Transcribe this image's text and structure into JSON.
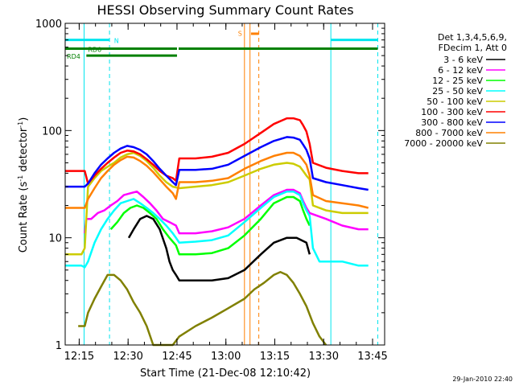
{
  "chart_data": {
    "type": "line",
    "title": "HESSI Observing Summary Count Rates",
    "xlabel": "Start Time (21-Dec-08 12:10:42)",
    "ylabel_main": "Count Rate (s",
    "ylabel_sup1": "-1",
    "ylabel_mid": " detector",
    "ylabel_sup2": "-1",
    "ylabel_end": ")",
    "ylim": [
      1,
      1000
    ],
    "yscale": "log",
    "y_ticks": [
      {
        "v": 1,
        "label": "1"
      },
      {
        "v": 10,
        "label": "10"
      },
      {
        "v": 100,
        "label": "100"
      },
      {
        "v": 1000,
        "label": "1000"
      }
    ],
    "x_ticks": [
      {
        "v": 4.3,
        "label": "12:15"
      },
      {
        "v": 19.3,
        "label": "12:30"
      },
      {
        "v": 34.3,
        "label": "12:45"
      },
      {
        "v": 49.3,
        "label": "13:00"
      },
      {
        "v": 64.3,
        "label": "13:15"
      },
      {
        "v": 79.3,
        "label": "13:30"
      },
      {
        "v": 94.3,
        "label": "13:45"
      }
    ],
    "xlim": [
      0,
      98
    ],
    "timestamp": "29-Jan-2010 22:40",
    "legend": {
      "placement": "right",
      "header1": "Det 1,3,4,5,6,9,",
      "header2": "FDecim 1, Att 0"
    },
    "series": [
      {
        "name": "3 - 6 keV",
        "color": "#000000",
        "points": [
          [
            19.5,
            10
          ],
          [
            21,
            12
          ],
          [
            23,
            15
          ],
          [
            25,
            16
          ],
          [
            27,
            15
          ],
          [
            29,
            12
          ],
          [
            31,
            8
          ],
          [
            32,
            6
          ],
          [
            33,
            5
          ],
          [
            34,
            4.5
          ],
          [
            35,
            4
          ],
          [
            40,
            4
          ],
          [
            45,
            4
          ],
          [
            50,
            4.2
          ],
          [
            55,
            5
          ],
          [
            60,
            7
          ],
          [
            64,
            9
          ],
          [
            68,
            10
          ],
          [
            71,
            10
          ],
          [
            74,
            9
          ],
          [
            75,
            7
          ]
        ]
      },
      {
        "name": "6 - 12 keV",
        "color": "#ff00ff",
        "points": [
          [
            6,
            11
          ],
          [
            6.5,
            15
          ],
          [
            8,
            15
          ],
          [
            10,
            17
          ],
          [
            12,
            18
          ],
          [
            14,
            20
          ],
          [
            16,
            22
          ],
          [
            18,
            25
          ],
          [
            20,
            26
          ],
          [
            22,
            27
          ],
          [
            24,
            24
          ],
          [
            26,
            21
          ],
          [
            28,
            18
          ],
          [
            30,
            15
          ],
          [
            32,
            14
          ],
          [
            34,
            13
          ],
          [
            35,
            11
          ],
          [
            40,
            11
          ],
          [
            45,
            11.5
          ],
          [
            50,
            12.5
          ],
          [
            55,
            15
          ],
          [
            60,
            20
          ],
          [
            64,
            25
          ],
          [
            68,
            28
          ],
          [
            70,
            28
          ],
          [
            72,
            26
          ],
          [
            73,
            22
          ],
          [
            74,
            19
          ],
          [
            75,
            17
          ],
          [
            80,
            15
          ],
          [
            85,
            13
          ],
          [
            90,
            12
          ],
          [
            93,
            12
          ]
        ]
      },
      {
        "name": "12 - 25 keV",
        "color": "#00ff00",
        "points": [
          [
            14,
            12
          ],
          [
            16,
            14
          ],
          [
            18,
            17
          ],
          [
            20,
            19
          ],
          [
            22,
            20
          ],
          [
            24,
            19
          ],
          [
            26,
            17
          ],
          [
            28,
            15
          ],
          [
            30,
            12
          ],
          [
            32,
            10
          ],
          [
            34,
            8.5
          ],
          [
            35,
            7
          ],
          [
            40,
            7
          ],
          [
            45,
            7.2
          ],
          [
            50,
            8
          ],
          [
            55,
            10.5
          ],
          [
            60,
            15
          ],
          [
            64,
            21
          ],
          [
            68,
            24
          ],
          [
            70,
            24
          ],
          [
            72,
            22
          ],
          [
            73,
            18
          ],
          [
            74,
            15
          ],
          [
            75,
            13
          ]
        ]
      },
      {
        "name": "25 - 50 keV",
        "color": "#00ffff",
        "points": [
          [
            0,
            5.5
          ],
          [
            5,
            5.5
          ],
          [
            6,
            5.3
          ],
          [
            7,
            6
          ],
          [
            9,
            9
          ],
          [
            11,
            12
          ],
          [
            13,
            15
          ],
          [
            15,
            18
          ],
          [
            17,
            21
          ],
          [
            19,
            22
          ],
          [
            21,
            23
          ],
          [
            23,
            21
          ],
          [
            25,
            19
          ],
          [
            27,
            17
          ],
          [
            29,
            15
          ],
          [
            31,
            13
          ],
          [
            33,
            11
          ],
          [
            34,
            10
          ],
          [
            35,
            9
          ],
          [
            40,
            9.2
          ],
          [
            45,
            9.5
          ],
          [
            50,
            10.5
          ],
          [
            55,
            14
          ],
          [
            60,
            19
          ],
          [
            64,
            24
          ],
          [
            68,
            27
          ],
          [
            70,
            27
          ],
          [
            72,
            25
          ],
          [
            73,
            21
          ],
          [
            74,
            18
          ],
          [
            75,
            16
          ],
          [
            76,
            8
          ],
          [
            78,
            6
          ],
          [
            80,
            6
          ],
          [
            85,
            6
          ],
          [
            90,
            5.5
          ],
          [
            93,
            5.5
          ]
        ]
      },
      {
        "name": "50 - 100 keV",
        "color": "#cccc00",
        "points": [
          [
            0,
            7
          ],
          [
            5,
            7
          ],
          [
            6,
            8
          ],
          [
            7,
            30
          ],
          [
            9,
            36
          ],
          [
            11,
            42
          ],
          [
            13,
            46
          ],
          [
            15,
            50
          ],
          [
            17,
            56
          ],
          [
            19,
            60
          ],
          [
            21,
            62
          ],
          [
            23,
            58
          ],
          [
            25,
            52
          ],
          [
            27,
            45
          ],
          [
            29,
            38
          ],
          [
            31,
            33
          ],
          [
            33,
            30
          ],
          [
            35,
            29
          ],
          [
            40,
            30
          ],
          [
            45,
            31
          ],
          [
            50,
            33
          ],
          [
            55,
            38
          ],
          [
            60,
            44
          ],
          [
            64,
            48
          ],
          [
            68,
            50
          ],
          [
            70,
            49
          ],
          [
            72,
            46
          ],
          [
            73,
            42
          ],
          [
            74,
            38
          ],
          [
            75,
            35
          ],
          [
            76,
            20
          ],
          [
            80,
            18
          ],
          [
            85,
            17
          ],
          [
            90,
            17
          ],
          [
            93,
            17
          ]
        ]
      },
      {
        "name": "100 - 300 keV",
        "color": "#ff0000",
        "points": [
          [
            0,
            42
          ],
          [
            6,
            42
          ],
          [
            7,
            32
          ],
          [
            9,
            38
          ],
          [
            11,
            44
          ],
          [
            13,
            50
          ],
          [
            15,
            56
          ],
          [
            17,
            62
          ],
          [
            19,
            65
          ],
          [
            21,
            64
          ],
          [
            23,
            60
          ],
          [
            25,
            54
          ],
          [
            27,
            48
          ],
          [
            29,
            42
          ],
          [
            31,
            38
          ],
          [
            33,
            36
          ],
          [
            34,
            34
          ],
          [
            35,
            55
          ],
          [
            40,
            55
          ],
          [
            45,
            57
          ],
          [
            50,
            62
          ],
          [
            55,
            75
          ],
          [
            60,
            95
          ],
          [
            64,
            115
          ],
          [
            68,
            130
          ],
          [
            70,
            130
          ],
          [
            72,
            125
          ],
          [
            73,
            112
          ],
          [
            74,
            98
          ],
          [
            75,
            75
          ],
          [
            76,
            50
          ],
          [
            80,
            45
          ],
          [
            85,
            42
          ],
          [
            90,
            40
          ],
          [
            93,
            40
          ]
        ]
      },
      {
        "name": "300 - 800 keV",
        "color": "#0000ff",
        "points": [
          [
            0,
            30
          ],
          [
            6,
            30
          ],
          [
            7,
            32
          ],
          [
            9,
            40
          ],
          [
            11,
            48
          ],
          [
            13,
            55
          ],
          [
            15,
            62
          ],
          [
            17,
            68
          ],
          [
            19,
            72
          ],
          [
            21,
            70
          ],
          [
            23,
            66
          ],
          [
            25,
            60
          ],
          [
            27,
            52
          ],
          [
            29,
            44
          ],
          [
            31,
            38
          ],
          [
            33,
            33
          ],
          [
            34,
            31
          ],
          [
            35,
            43
          ],
          [
            40,
            43
          ],
          [
            45,
            44
          ],
          [
            50,
            48
          ],
          [
            55,
            58
          ],
          [
            60,
            70
          ],
          [
            64,
            80
          ],
          [
            68,
            87
          ],
          [
            70,
            86
          ],
          [
            72,
            82
          ],
          [
            73,
            74
          ],
          [
            74,
            66
          ],
          [
            75,
            55
          ],
          [
            76,
            36
          ],
          [
            80,
            33
          ],
          [
            85,
            31
          ],
          [
            90,
            29
          ],
          [
            93,
            28
          ]
        ]
      },
      {
        "name": "800 - 7000 keV",
        "color": "#ff8000",
        "points": [
          [
            0,
            19
          ],
          [
            6,
            19
          ],
          [
            7,
            23
          ],
          [
            9,
            29
          ],
          [
            11,
            36
          ],
          [
            13,
            42
          ],
          [
            15,
            48
          ],
          [
            17,
            53
          ],
          [
            19,
            57
          ],
          [
            21,
            56
          ],
          [
            23,
            52
          ],
          [
            25,
            47
          ],
          [
            27,
            41
          ],
          [
            29,
            35
          ],
          [
            31,
            30
          ],
          [
            33,
            26
          ],
          [
            34,
            23
          ],
          [
            35,
            33
          ],
          [
            40,
            33
          ],
          [
            45,
            34
          ],
          [
            50,
            36
          ],
          [
            55,
            44
          ],
          [
            60,
            52
          ],
          [
            64,
            58
          ],
          [
            68,
            62
          ],
          [
            70,
            62
          ],
          [
            72,
            58
          ],
          [
            73,
            53
          ],
          [
            74,
            48
          ],
          [
            75,
            38
          ],
          [
            76,
            25
          ],
          [
            80,
            22
          ],
          [
            85,
            21
          ],
          [
            90,
            20
          ],
          [
            93,
            19
          ]
        ]
      },
      {
        "name": "7000 - 20000 keV",
        "color": "#808000",
        "points": [
          [
            4,
            1.5
          ],
          [
            6,
            1.5
          ],
          [
            7,
            2
          ],
          [
            9,
            2.7
          ],
          [
            11,
            3.5
          ],
          [
            13,
            4.5
          ],
          [
            15,
            4.5
          ],
          [
            17,
            4
          ],
          [
            19,
            3.3
          ],
          [
            21,
            2.5
          ],
          [
            23,
            2
          ],
          [
            25,
            1.5
          ],
          [
            27,
            1
          ],
          [
            33,
            1
          ],
          [
            35,
            1.2
          ],
          [
            40,
            1.5
          ],
          [
            45,
            1.8
          ],
          [
            50,
            2.2
          ],
          [
            55,
            2.7
          ],
          [
            58,
            3.3
          ],
          [
            61,
            3.8
          ],
          [
            64,
            4.5
          ],
          [
            66,
            4.8
          ],
          [
            68,
            4.5
          ],
          [
            70,
            3.8
          ],
          [
            72,
            3
          ],
          [
            74,
            2.3
          ],
          [
            76,
            1.6
          ],
          [
            78,
            1.2
          ],
          [
            80,
            1
          ]
        ]
      }
    ],
    "vlines": [
      {
        "x": 5.8,
        "color": "#00e5ee",
        "style": "solid"
      },
      {
        "x": 13.6,
        "color": "#00e5ee",
        "style": "dash"
      },
      {
        "x": 81.5,
        "color": "#00e5ee",
        "style": "solid"
      },
      {
        "x": 95.9,
        "color": "#00e5ee",
        "style": "dash"
      },
      {
        "x": 55.0,
        "color": "#ff8000",
        "style": "solid"
      },
      {
        "x": 56.7,
        "color": "#ff8000",
        "style": "solid"
      },
      {
        "x": 59.4,
        "color": "#ff8000",
        "style": "dash"
      }
    ],
    "bars": [
      {
        "x0": 0,
        "x1": 13.6,
        "y": 700,
        "color": "#00e5ee",
        "label": "N",
        "label_x": 15,
        "label_y": 700
      },
      {
        "x0": 81.5,
        "x1": 95.9,
        "y": 700,
        "color": "#00e5ee"
      },
      {
        "x0": 0,
        "x1": 34.3,
        "y": 580,
        "color": "#008000",
        "label": "RD0",
        "label_x": 7,
        "label_y": 580
      },
      {
        "x0": 6.5,
        "x1": 34.3,
        "y": 500,
        "color": "#008000",
        "label": "RD4",
        "label_x": 0.5,
        "label_y": 500
      },
      {
        "x0": 34.8,
        "x1": 95.9,
        "y": 580,
        "color": "#008000"
      },
      {
        "x0": 57.0,
        "x1": 59.4,
        "y": 800,
        "color": "#ff8000",
        "label": "S",
        "label_x": 53,
        "label_y": 820
      }
    ]
  }
}
